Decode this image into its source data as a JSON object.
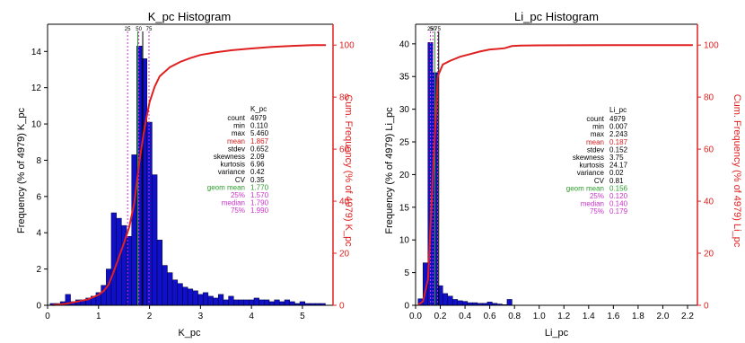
{
  "chart_data": [
    {
      "type": "bar",
      "title": "K_pc Histogram",
      "xlabel": "K_pc",
      "ylabel": "Frequency (% of 4979) K_pc",
      "y2label": "Cum. Frequency (% of 4979) K_pc",
      "xlim": [
        0,
        5.6
      ],
      "ylim": [
        0,
        15.5
      ],
      "y2lim": [
        0,
        108
      ],
      "xticks": [
        "0",
        "1",
        "2",
        "3",
        "4",
        "5"
      ],
      "yticks": [
        "0",
        "2",
        "4",
        "6",
        "8",
        "10",
        "12",
        "14"
      ],
      "y2ticks": [
        "0",
        "20",
        "40",
        "60",
        "80",
        "100"
      ],
      "bin_width": 0.1,
      "bins_x": [
        0.1,
        0.2,
        0.3,
        0.4,
        0.5,
        0.6,
        0.7,
        0.8,
        0.9,
        1.0,
        1.1,
        1.2,
        1.3,
        1.4,
        1.5,
        1.6,
        1.7,
        1.8,
        1.9,
        2.0,
        2.1,
        2.2,
        2.3,
        2.4,
        2.5,
        2.6,
        2.7,
        2.8,
        2.9,
        3.0,
        3.1,
        3.2,
        3.3,
        3.4,
        3.5,
        3.6,
        3.7,
        3.8,
        3.9,
        4.0,
        4.1,
        4.2,
        4.3,
        4.4,
        4.5,
        4.6,
        4.7,
        4.8,
        4.9,
        5.0,
        5.1,
        5.2,
        5.3,
        5.4
      ],
      "frequency": [
        0.1,
        0.1,
        0.2,
        0.6,
        0.2,
        0.3,
        0.3,
        0.4,
        0.5,
        0.7,
        1.1,
        2.0,
        5.1,
        4.8,
        4.4,
        3.8,
        8.3,
        14.3,
        13.6,
        10.1,
        7.2,
        3.6,
        2.2,
        1.8,
        1.4,
        1.2,
        1.0,
        0.9,
        0.8,
        0.6,
        0.7,
        0.5,
        0.4,
        0.6,
        0.3,
        0.5,
        0.3,
        0.3,
        0.3,
        0.3,
        0.4,
        0.3,
        0.3,
        0.2,
        0.3,
        0.2,
        0.3,
        0.2,
        0.1,
        0.2,
        0.1,
        0.1,
        0.1,
        0.1
      ],
      "cumulative_x": [
        0.1,
        0.3,
        0.5,
        0.8,
        1.0,
        1.1,
        1.2,
        1.3,
        1.4,
        1.5,
        1.6,
        1.7,
        1.8,
        1.9,
        2.0,
        2.1,
        2.2,
        2.4,
        2.6,
        2.8,
        3.0,
        3.3,
        3.6,
        4.0,
        4.4,
        4.8,
        5.2,
        5.46
      ],
      "cumulative": [
        0.1,
        0.4,
        1.1,
        2.3,
        4.0,
        5.5,
        8.0,
        13.0,
        18.5,
        24.0,
        30.0,
        39.0,
        55.0,
        68.0,
        78.0,
        84.0,
        88.0,
        91.5,
        93.5,
        95.0,
        96.2,
        97.2,
        98.0,
        98.7,
        99.3,
        99.7,
        99.95,
        100.0
      ],
      "quantile_lines": [
        {
          "label": "25",
          "x": 1.57,
          "color": "#cc33cc"
        },
        {
          "label": "50",
          "x": 1.79,
          "color": "#cc33cc"
        },
        {
          "label": "75",
          "x": 1.99,
          "color": "#cc33cc"
        },
        {
          "label": "",
          "x": 1.867,
          "color": "#000000"
        },
        {
          "label": "",
          "x": 1.77,
          "color": "#2a9d2a"
        }
      ],
      "stats_header": "K_pc",
      "stats": [
        {
          "label": "count",
          "value": "4979",
          "color": "#000000"
        },
        {
          "label": "min",
          "value": "0.110",
          "color": "#000000"
        },
        {
          "label": "max",
          "value": "5.460",
          "color": "#000000"
        },
        {
          "label": "mean",
          "value": "1.867",
          "color": "#e02020"
        },
        {
          "label": "stdev",
          "value": "0.652",
          "color": "#000000"
        },
        {
          "label": "skewness",
          "value": "2.09",
          "color": "#000000"
        },
        {
          "label": "kurtosis",
          "value": "6.96",
          "color": "#000000"
        },
        {
          "label": "variance",
          "value": "0.42",
          "color": "#000000"
        },
        {
          "label": "CV",
          "value": "0.35",
          "color": "#000000"
        },
        {
          "label": "geom mean",
          "value": "1.770",
          "color": "#2a9d2a"
        },
        {
          "label": "25%",
          "value": "1.570",
          "color": "#cc33cc"
        },
        {
          "label": "median",
          "value": "1.790",
          "color": "#cc33cc"
        },
        {
          "label": "75%",
          "value": "1.990",
          "color": "#cc33cc"
        }
      ]
    },
    {
      "type": "bar",
      "title": "Li_pc Histogram",
      "xlabel": "Li_pc",
      "ylabel": "Frequency (% of 4979) Li_pc",
      "y2label": "Cum. Frequency (% of 4979) Li_pc",
      "xlim": [
        0,
        2.28
      ],
      "ylim": [
        0,
        43
      ],
      "y2lim": [
        0,
        108
      ],
      "xticks": [
        "0.0",
        "0.2",
        "0.4",
        "0.6",
        "0.8",
        "1.0",
        "1.2",
        "1.4",
        "1.6",
        "1.8",
        "2.0",
        "2.2"
      ],
      "yticks": [
        "0",
        "5",
        "10",
        "15",
        "20",
        "25",
        "30",
        "35",
        "40"
      ],
      "y2ticks": [
        "0",
        "20",
        "40",
        "60",
        "80",
        "100"
      ],
      "bin_width": 0.04,
      "bins_x": [
        0.04,
        0.08,
        0.12,
        0.16,
        0.2,
        0.24,
        0.28,
        0.32,
        0.36,
        0.4,
        0.44,
        0.48,
        0.52,
        0.56,
        0.6,
        0.64,
        0.68,
        0.72,
        0.76
      ],
      "frequency": [
        1.0,
        6.5,
        40.2,
        35.6,
        3.0,
        1.8,
        1.4,
        0.9,
        0.7,
        0.6,
        0.4,
        0.4,
        0.3,
        0.3,
        0.5,
        0.3,
        0.2,
        0.1,
        0.9
      ],
      "cumulative_x": [
        0.02,
        0.06,
        0.1,
        0.14,
        0.18,
        0.22,
        0.28,
        0.36,
        0.44,
        0.52,
        0.6,
        0.66,
        0.72,
        0.78,
        0.85,
        1.0,
        1.6,
        2.243
      ],
      "cumulative": [
        0.2,
        1.5,
        10.0,
        50.0,
        88.0,
        92.5,
        94.0,
        95.5,
        96.5,
        97.5,
        98.3,
        98.5,
        98.8,
        99.6,
        99.8,
        99.9,
        100.0,
        100.0
      ],
      "quantile_lines": [
        {
          "label": "25",
          "x": 0.12,
          "color": "#cc33cc"
        },
        {
          "label": "50",
          "x": 0.14,
          "color": "#cc33cc"
        },
        {
          "label": "75",
          "x": 0.179,
          "color": "#cc33cc"
        },
        {
          "label": "",
          "x": 0.187,
          "color": "#000000"
        },
        {
          "label": "",
          "x": 0.156,
          "color": "#2a9d2a"
        }
      ],
      "stats_header": "Li_pc",
      "stats": [
        {
          "label": "count",
          "value": "4979",
          "color": "#000000"
        },
        {
          "label": "min",
          "value": "0.007",
          "color": "#000000"
        },
        {
          "label": "max",
          "value": "2.243",
          "color": "#000000"
        },
        {
          "label": "mean",
          "value": "0.187",
          "color": "#e02020"
        },
        {
          "label": "stdev",
          "value": "0.152",
          "color": "#000000"
        },
        {
          "label": "skewness",
          "value": "3.75",
          "color": "#000000"
        },
        {
          "label": "kurtosis",
          "value": "24.17",
          "color": "#000000"
        },
        {
          "label": "variance",
          "value": "0.02",
          "color": "#000000"
        },
        {
          "label": "CV",
          "value": "0.81",
          "color": "#000000"
        },
        {
          "label": "geom mean",
          "value": "0.156",
          "color": "#2a9d2a"
        },
        {
          "label": "25%",
          "value": "0.120",
          "color": "#cc33cc"
        },
        {
          "label": "median",
          "value": "0.140",
          "color": "#cc33cc"
        },
        {
          "label": "75%",
          "value": "0.179",
          "color": "#cc33cc"
        }
      ]
    }
  ],
  "colors": {
    "bar_fill": "#1010c8",
    "bar_edge": "#000033",
    "cumulative_line": "#e02020",
    "right_axis": "#e02020"
  }
}
